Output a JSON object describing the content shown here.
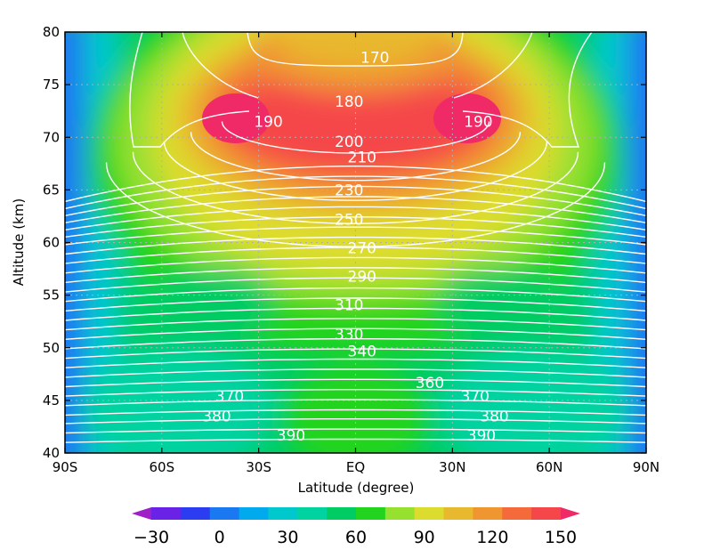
{
  "chart_data": {
    "type": "heatmap",
    "title": "",
    "xlabel": "Latitude (degree)",
    "ylabel": "Altitude (km)",
    "xlim": [
      -90,
      90
    ],
    "ylim": [
      40,
      80
    ],
    "grid": true,
    "x_ticks": [
      {
        "value": -90,
        "label": "90S"
      },
      {
        "value": -60,
        "label": "60S"
      },
      {
        "value": -30,
        "label": "30S"
      },
      {
        "value": 0,
        "label": "EQ"
      },
      {
        "value": 30,
        "label": "30N"
      },
      {
        "value": 60,
        "label": "60N"
      },
      {
        "value": 90,
        "label": "90N"
      }
    ],
    "y_ticks": [
      40,
      45,
      50,
      55,
      60,
      65,
      70,
      75,
      80
    ],
    "filled_field": {
      "description": "shaded contours",
      "levels": [
        -30,
        -15,
        0,
        15,
        30,
        45,
        60,
        75,
        90,
        105,
        120,
        135,
        150
      ],
      "colors": [
        "#a020c8",
        "#6a22e6",
        "#2c3cf0",
        "#1a78f0",
        "#00aaec",
        "#00c8cc",
        "#00d2a0",
        "#00cc64",
        "#22d41e",
        "#96e030",
        "#dcdc2e",
        "#e8b82e",
        "#f09630",
        "#f56a3a",
        "#f5464a",
        "#f02a66"
      ],
      "colorbar_labels": [
        -30,
        0,
        30,
        60,
        90,
        120,
        150
      ],
      "extend": "both",
      "cells": [
        {
          "lat": -90,
          "alt": 40,
          "value": -5
        },
        {
          "lat": -60,
          "alt": 40,
          "value": 45
        },
        {
          "lat": -30,
          "alt": 40,
          "value": 52
        },
        {
          "lat": 0,
          "alt": 40,
          "value": 62
        },
        {
          "lat": 30,
          "alt": 40,
          "value": 52
        },
        {
          "lat": 60,
          "alt": 40,
          "value": 45
        },
        {
          "lat": 90,
          "alt": 40,
          "value": -5
        },
        {
          "lat": -90,
          "alt": 50,
          "value": 0
        },
        {
          "lat": -60,
          "alt": 50,
          "value": 50
        },
        {
          "lat": -30,
          "alt": 50,
          "value": 55
        },
        {
          "lat": 0,
          "alt": 50,
          "value": 72
        },
        {
          "lat": 30,
          "alt": 50,
          "value": 55
        },
        {
          "lat": 60,
          "alt": 50,
          "value": 50
        },
        {
          "lat": 90,
          "alt": 50,
          "value": 0
        },
        {
          "lat": -90,
          "alt": 60,
          "value": 10
        },
        {
          "lat": -60,
          "alt": 60,
          "value": 58
        },
        {
          "lat": -30,
          "alt": 60,
          "value": 72
        },
        {
          "lat": 0,
          "alt": 60,
          "value": 98
        },
        {
          "lat": 30,
          "alt": 60,
          "value": 72
        },
        {
          "lat": 60,
          "alt": 60,
          "value": 58
        },
        {
          "lat": 90,
          "alt": 60,
          "value": 10
        },
        {
          "lat": -90,
          "alt": 70,
          "value": 15
        },
        {
          "lat": -60,
          "alt": 70,
          "value": 75
        },
        {
          "lat": -30,
          "alt": 70,
          "value": 140
        },
        {
          "lat": 0,
          "alt": 70,
          "value": 132
        },
        {
          "lat": 30,
          "alt": 70,
          "value": 140
        },
        {
          "lat": 60,
          "alt": 70,
          "value": 75
        },
        {
          "lat": 90,
          "alt": 70,
          "value": 15
        },
        {
          "lat": -90,
          "alt": 80,
          "value": 15
        },
        {
          "lat": -60,
          "alt": 80,
          "value": 70
        },
        {
          "lat": -30,
          "alt": 80,
          "value": 105
        },
        {
          "lat": 0,
          "alt": 80,
          "value": 92
        },
        {
          "lat": 30,
          "alt": 80,
          "value": 105
        },
        {
          "lat": 60,
          "alt": 80,
          "value": 70
        },
        {
          "lat": 90,
          "alt": 80,
          "value": 15
        }
      ]
    },
    "contour_labels": [
      {
        "text": "170",
        "lat": 6,
        "alt": 77.6
      },
      {
        "text": "180",
        "lat": -2,
        "alt": 73.4
      },
      {
        "text": "190",
        "lat": -27,
        "alt": 71.5
      },
      {
        "text": "190",
        "lat": 38,
        "alt": 71.5
      },
      {
        "text": "200",
        "lat": -2,
        "alt": 69.6
      },
      {
        "text": "210",
        "lat": 2,
        "alt": 68.1
      },
      {
        "text": "230",
        "lat": -2,
        "alt": 65.0
      },
      {
        "text": "250",
        "lat": -2,
        "alt": 62.2
      },
      {
        "text": "270",
        "lat": 2,
        "alt": 59.5
      },
      {
        "text": "290",
        "lat": 2,
        "alt": 56.8
      },
      {
        "text": "310",
        "lat": -2,
        "alt": 54.1
      },
      {
        "text": "330",
        "lat": -2,
        "alt": 51.3
      },
      {
        "text": "340",
        "lat": 2,
        "alt": 49.7
      },
      {
        "text": "360",
        "lat": 23,
        "alt": 46.7
      },
      {
        "text": "370",
        "lat": -39,
        "alt": 45.4
      },
      {
        "text": "370",
        "lat": 37,
        "alt": 45.4
      },
      {
        "text": "380",
        "lat": -43,
        "alt": 43.5
      },
      {
        "text": "380",
        "lat": 43,
        "alt": 43.5
      },
      {
        "text": "390",
        "lat": -20,
        "alt": 41.7
      },
      {
        "text": "390",
        "lat": 39,
        "alt": 41.7
      }
    ]
  }
}
